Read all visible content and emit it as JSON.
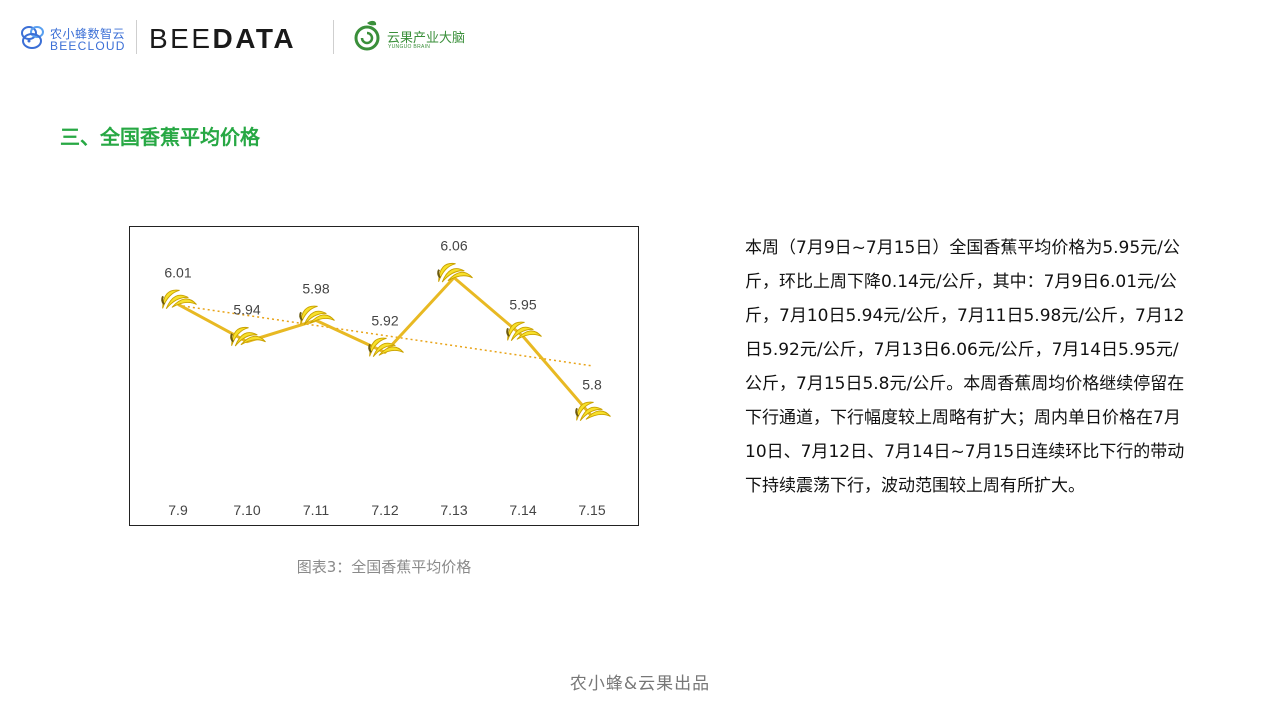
{
  "header": {
    "bee_logo_cn": "农小蜂数智云",
    "bee_logo_en": "BEECLOUD",
    "beedata_part1": "BEE",
    "beedata_part2": "DATA",
    "yunguo_cn": "云果产业大脑",
    "yunguo_en": "YUNGUO BRAIN"
  },
  "section_title": "三、全国香蕉平均价格",
  "chart_data": {
    "type": "line",
    "categories": [
      "7.9",
      "7.10",
      "7.11",
      "7.12",
      "7.13",
      "7.14",
      "7.15"
    ],
    "values": [
      6.01,
      5.94,
      5.98,
      5.92,
      6.06,
      5.95,
      5.8
    ],
    "data_labels": [
      "6.01",
      "5.94",
      "5.98",
      "5.92",
      "6.06",
      "5.95",
      "5.8"
    ],
    "title": "",
    "xlabel": "",
    "ylabel": "",
    "ylim": [
      5.78,
      6.08
    ],
    "trendline": true,
    "marker": "banana-icon",
    "grid": false,
    "colors": {
      "line": "#e8b923",
      "trend": "#e8a317",
      "banana": "#f7e02a",
      "banana_outline": "#c9a100"
    }
  },
  "caption": "图表3：全国香蕉平均价格",
  "description": "本周（7月9日~7月15日）全国香蕉平均价格为5.95元/公斤，环比上周下降0.14元/公斤，其中：7月9日6.01元/公斤，7月10日5.94元/公斤，7月11日5.98元/公斤，7月12日5.92元/公斤，7月13日6.06元/公斤，7月14日5.95元/公斤，7月15日5.8元/公斤。本周香蕉周均价格继续停留在下行通道，下行幅度较上周略有扩大；周内单日价格在7月10日、7月12日、7月14日~7月15日连续环比下行的带动下持续震荡下行，波动范围较上周有所扩大。",
  "footer": "农小蜂&云果出品"
}
